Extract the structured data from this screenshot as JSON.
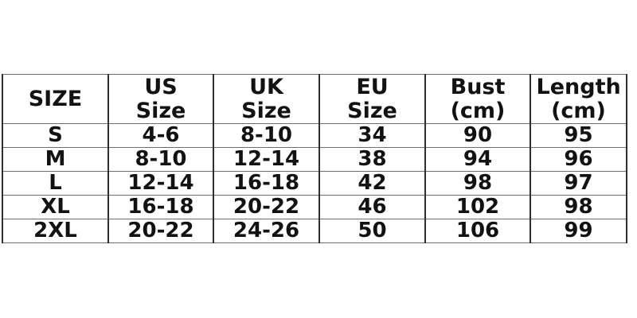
{
  "colors": {
    "background": "#ffffff",
    "text": "#121212",
    "vertical_rule": "#2e2e2e",
    "horizontal_rule": "#6e6e6e"
  },
  "chart_data": {
    "type": "table",
    "columns": [
      "SIZE",
      "US Size",
      "UK Size",
      "EU Size",
      "Bust (cm)",
      "Length (cm)"
    ],
    "rows": [
      [
        "S",
        "4-6",
        "8-10",
        "34",
        "90",
        "95"
      ],
      [
        "M",
        "8-10",
        "12-14",
        "38",
        "94",
        "96"
      ],
      [
        "L",
        "12-14",
        "16-18",
        "42",
        "98",
        "97"
      ],
      [
        "XL",
        "16-18",
        "20-22",
        "46",
        "102",
        "98"
      ],
      [
        "2XL",
        "20-22",
        "24-26",
        "50",
        "106",
        "99"
      ]
    ]
  }
}
